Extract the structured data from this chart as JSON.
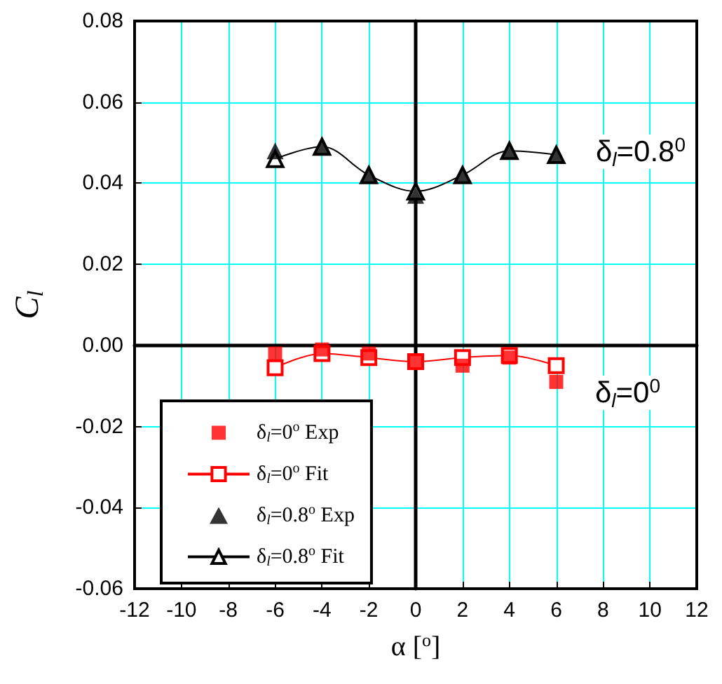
{
  "chart_data": {
    "type": "scatter",
    "xlabel": "α [$^{o}$]",
    "ylabel": "C$_{l}$",
    "xlim": [
      -12,
      12
    ],
    "xticks": [
      -12,
      -10,
      -8,
      -6,
      -4,
      -2,
      0,
      2,
      4,
      6,
      8,
      10,
      12
    ],
    "ylim": [
      -0.06,
      0.08
    ],
    "yticks": [
      {
        "value": -0.06,
        "label": "-0.06"
      },
      {
        "value": -0.04,
        "label": "-0.04"
      },
      {
        "value": -0.02,
        "label": "-0.02"
      },
      {
        "value": 0,
        "label": "0.00"
      },
      {
        "value": 0.02,
        "label": "0.02"
      },
      {
        "value": 0.04,
        "label": "0.04"
      },
      {
        "value": 0.06,
        "label": "0.06"
      },
      {
        "value": 0.08,
        "label": "0.08"
      }
    ],
    "grid": true,
    "legend": "bottom left",
    "x": [
      -6,
      -4,
      -2,
      0,
      2,
      4,
      6
    ],
    "series": [
      {
        "name": "δ$_{l}$=0$^{o}$ Exp",
        "type": "scatter",
        "marker": "square",
        "color": "#ff0000",
        "values": [
          -0.002,
          -0.001,
          -0.002,
          -0.004,
          -0.005,
          -0.003,
          -0.009
        ]
      },
      {
        "name": "δ$_{l}$=0$^{o}$ Fit",
        "type": "line",
        "marker": "square",
        "color": "#ff0000",
        "values": [
          -0.0055,
          -0.002,
          -0.003,
          -0.004,
          -0.003,
          -0.0025,
          -0.005
        ]
      },
      {
        "name": "δ$_{l}$=0.8$^{o}$ Exp",
        "type": "scatter",
        "marker": "triangle",
        "color": "#000000",
        "values": [
          0.048,
          0.049,
          0.042,
          0.037,
          0.042,
          0.048,
          0.047
        ]
      },
      {
        "name": "δ$_{l}$=0.8$^{o}$ Fit",
        "type": "line",
        "marker": "triangle",
        "color": "#000000",
        "values": [
          0.046,
          0.049,
          0.042,
          0.038,
          0.042,
          0.048,
          0.047
        ]
      }
    ],
    "annotations": [
      "δ$_{l}$=0.8$^{0}$",
      "δ$_{l}$=0$^{0}$"
    ]
  }
}
